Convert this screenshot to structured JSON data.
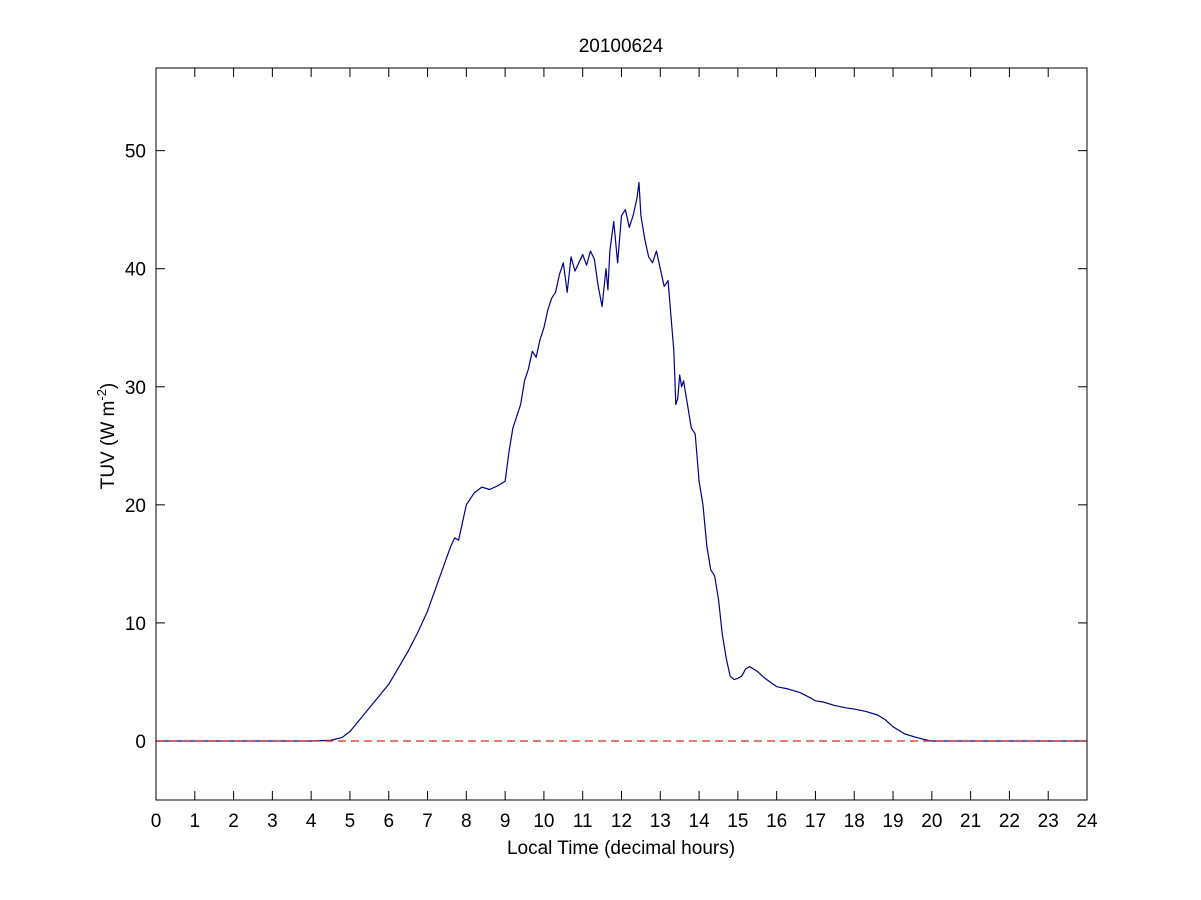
{
  "chart_data": {
    "type": "line",
    "title": "20100624",
    "xlabel": "Local Time (decimal hours)",
    "ylabel": {
      "main": "TUV (W m",
      "exponent": "-2",
      "suffix": ")"
    },
    "xlim": [
      0,
      24
    ],
    "ylim": [
      -5,
      57
    ],
    "xticks": [
      0,
      1,
      2,
      3,
      4,
      5,
      6,
      7,
      8,
      9,
      10,
      11,
      12,
      13,
      14,
      15,
      16,
      17,
      18,
      19,
      20,
      21,
      22,
      23,
      24
    ],
    "yticks": [
      0,
      10,
      20,
      30,
      40,
      50
    ],
    "grid": false,
    "series": [
      {
        "color": "#00008b",
        "style": "solid",
        "x": [
          0,
          4.0,
          4.5,
          4.8,
          5.0,
          5.25,
          5.5,
          5.75,
          6.0,
          6.25,
          6.5,
          6.75,
          7.0,
          7.25,
          7.5,
          7.6,
          7.7,
          7.8,
          8.0,
          8.2,
          8.4,
          8.6,
          8.8,
          9.0,
          9.1,
          9.2,
          9.3,
          9.4,
          9.5,
          9.6,
          9.7,
          9.8,
          9.9,
          10.0,
          10.1,
          10.2,
          10.3,
          10.4,
          10.5,
          10.6,
          10.7,
          10.8,
          10.9,
          11.0,
          11.1,
          11.2,
          11.3,
          11.4,
          11.5,
          11.6,
          11.65,
          11.7,
          11.8,
          11.9,
          12.0,
          12.1,
          12.2,
          12.3,
          12.4,
          12.45,
          12.5,
          12.6,
          12.7,
          12.8,
          12.9,
          13.0,
          13.1,
          13.2,
          13.3,
          13.35,
          13.4,
          13.45,
          13.5,
          13.55,
          13.6,
          13.7,
          13.8,
          13.9,
          14.0,
          14.1,
          14.2,
          14.3,
          14.4,
          14.5,
          14.6,
          14.7,
          14.8,
          14.9,
          15.0,
          15.1,
          15.2,
          15.3,
          15.4,
          15.5,
          15.7,
          16.0,
          16.3,
          16.6,
          16.9,
          17.0,
          17.2,
          17.5,
          17.8,
          18.0,
          18.3,
          18.6,
          18.8,
          19.0,
          19.3,
          19.6,
          19.9,
          20.0,
          21.0,
          24.0
        ],
        "y": [
          0,
          0,
          0.05,
          0.3,
          0.8,
          1.8,
          2.8,
          3.8,
          4.8,
          6.2,
          7.6,
          9.2,
          11.0,
          13.3,
          15.6,
          16.5,
          17.2,
          17.0,
          20.0,
          21.0,
          21.5,
          21.3,
          21.6,
          22.0,
          24.5,
          26.5,
          27.5,
          28.5,
          30.5,
          31.5,
          33.0,
          32.5,
          34.0,
          35.0,
          36.5,
          37.5,
          38.0,
          39.5,
          40.5,
          38.0,
          41.0,
          39.8,
          40.5,
          41.2,
          40.3,
          41.5,
          40.8,
          38.5,
          36.8,
          40.0,
          38.2,
          41.5,
          44.0,
          40.5,
          44.5,
          45.0,
          43.5,
          44.5,
          46.0,
          47.3,
          44.5,
          42.5,
          41.0,
          40.5,
          41.5,
          40.0,
          38.5,
          39.0,
          35.0,
          33.0,
          28.5,
          29.0,
          31.0,
          30.0,
          30.5,
          28.5,
          26.5,
          26.0,
          22.0,
          20.0,
          16.5,
          14.5,
          14.0,
          12.0,
          9.0,
          7.0,
          5.5,
          5.2,
          5.3,
          5.5,
          6.1,
          6.3,
          6.1,
          5.9,
          5.3,
          4.6,
          4.4,
          4.1,
          3.6,
          3.4,
          3.3,
          3.0,
          2.8,
          2.7,
          2.5,
          2.2,
          1.8,
          1.2,
          0.6,
          0.3,
          0.05,
          0,
          0,
          0
        ]
      },
      {
        "color": "#d62728",
        "style": "dashed",
        "x": [
          0,
          24
        ],
        "y": [
          0,
          0
        ]
      }
    ]
  }
}
